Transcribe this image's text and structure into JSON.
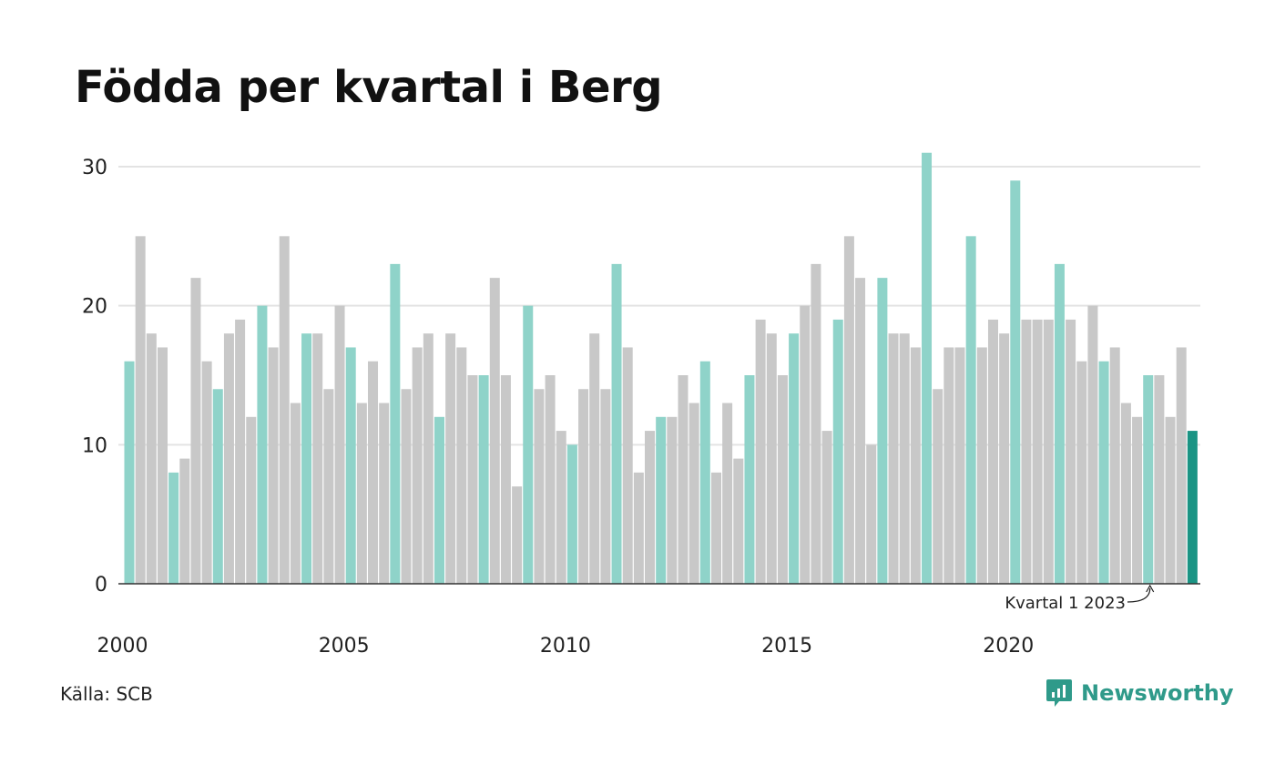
{
  "source": "Källa: SCB",
  "brand": "Newsworthy",
  "colors": {
    "q1": "#8fd3c9",
    "other": "#c8c8c8",
    "latest": "#1a9484",
    "grid": "#e3e3e3",
    "axis": "#333333",
    "brand": "#2f9a8a"
  },
  "chart_data": {
    "type": "bar",
    "title": "Födda per kvartal i Berg",
    "xlabel": "",
    "ylabel": "",
    "ylim": [
      0,
      30
    ],
    "yticks": [
      "0",
      "10",
      "20",
      "30"
    ],
    "xticks": [
      "2000",
      "2005",
      "2010",
      "2015",
      "2020"
    ],
    "grid": true,
    "highlight": "first quarter of each year",
    "annotation": "Kvartal 1 2023",
    "series": [
      {
        "values": [
          16,
          25,
          18,
          17,
          8,
          9,
          22,
          16,
          14,
          18,
          19,
          12,
          20,
          17,
          25,
          13,
          18,
          18,
          14,
          20,
          17,
          13,
          16,
          13,
          23,
          14,
          17,
          18,
          12,
          18,
          17,
          15,
          15,
          22,
          15,
          7,
          20,
          14,
          15,
          11,
          10,
          14,
          18,
          14,
          23,
          17,
          8,
          11,
          12,
          12,
          15,
          13,
          16,
          8,
          13,
          9,
          15,
          19,
          18,
          15,
          18,
          20,
          23,
          11,
          19,
          25,
          22,
          10,
          22,
          18,
          18,
          17,
          31,
          14,
          17,
          17,
          25,
          17,
          19,
          18,
          29,
          19,
          19,
          19,
          23,
          19,
          16,
          20,
          16,
          17,
          13,
          12,
          15,
          15,
          12,
          17,
          11
        ]
      }
    ]
  }
}
